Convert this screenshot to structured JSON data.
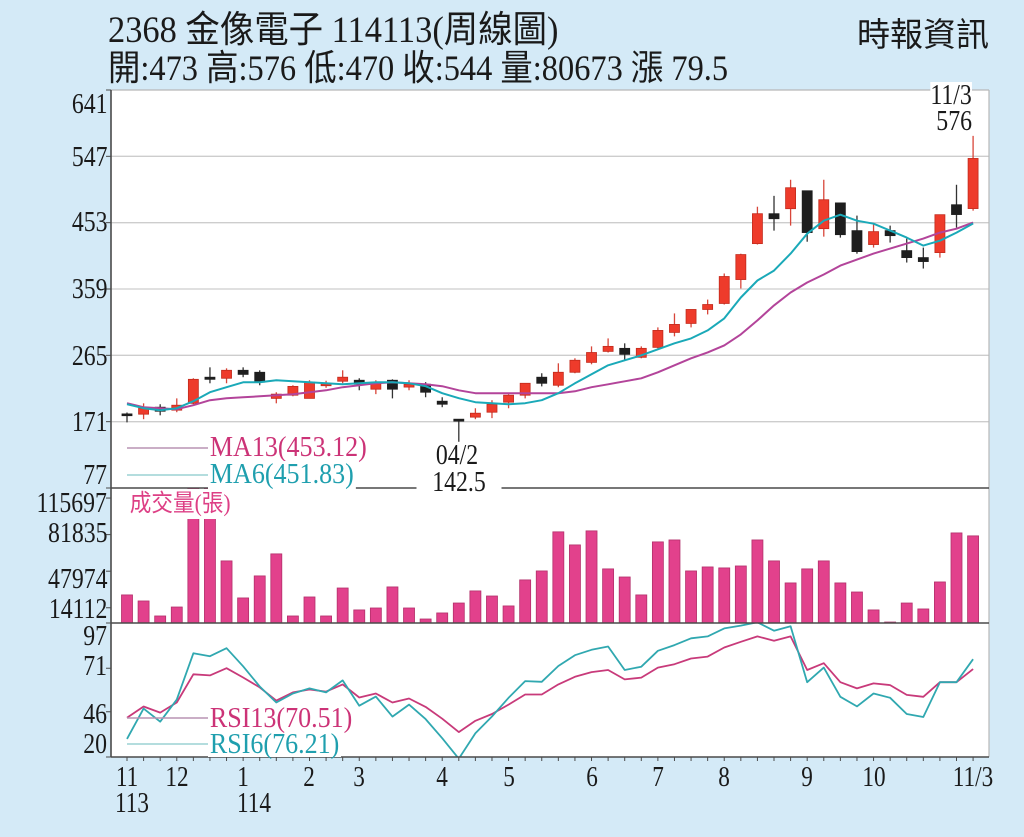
{
  "header": {
    "title": "2368  金像電子 114113(周線圖)",
    "summary": "開:473 高:576 低:470 收:544 量:80673 漲 79.5",
    "source": "時報資訊"
  },
  "quote": {
    "open": 473,
    "high": 576,
    "low": 470,
    "close": 544,
    "volume": 80673,
    "change": 79.5
  },
  "price_panel": {
    "y_axis_labels": [
      "641",
      "547",
      "453",
      "359",
      "265",
      "171",
      "77"
    ],
    "legend": {
      "ma13": "MA13(453.12)",
      "ma6": "MA6(451.83)"
    },
    "annotations": {
      "low_date": "04/2",
      "low_value": "142.5",
      "high_date": "11/3",
      "high_value": "576"
    }
  },
  "volume_panel": {
    "title": "成交量(張)",
    "y_axis_labels": [
      "115697",
      "81835",
      "47974",
      "14112"
    ]
  },
  "rsi_panel": {
    "y_axis_labels": [
      "97",
      "71",
      "46",
      "20"
    ],
    "legend": {
      "rsi13": "RSI13(70.51)",
      "rsi6": "RSI6(76.21)"
    }
  },
  "x_axis": {
    "ticks": [
      {
        "index": 0,
        "label": "11",
        "sub": "113"
      },
      {
        "index": 3,
        "label": "12"
      },
      {
        "index": 7,
        "label": "1",
        "sub": "114"
      },
      {
        "index": 11,
        "label": "2"
      },
      {
        "index": 14,
        "label": "3"
      },
      {
        "index": 19,
        "label": "4"
      },
      {
        "index": 23,
        "label": "5"
      },
      {
        "index": 28,
        "label": "6"
      },
      {
        "index": 32,
        "label": "7"
      },
      {
        "index": 36,
        "label": "8"
      },
      {
        "index": 41,
        "label": "9"
      },
      {
        "index": 45,
        "label": "10"
      },
      {
        "index": 51,
        "label": "11/3"
      }
    ]
  },
  "colors": {
    "background": "#d4eaf7",
    "plot_background": "#ffffff",
    "grid": "#cdcdcd",
    "frame": "#b8b8b8",
    "axis": "#4a4a4a",
    "candle_up": "#ee3b2b",
    "candle_up_border": "#c22a1c",
    "candle_up_wick": "#d8463a",
    "candle_down": "#1e1e1e",
    "candle_down_wick": "#333333",
    "ma13": "#b3449a",
    "ma6": "#1aa9b8",
    "ma13_legend_line": "#b993b3",
    "ma6_legend_line": "#9bd2d4",
    "volume": "#e2418c",
    "volume_border": "#b3306b",
    "rsi13": "#c83a7a",
    "rsi6": "#30a8b0",
    "text": "#1a1a1a",
    "ma13_text": "#cc3377",
    "ma6_text": "#1f9fae",
    "volume_title": "#dd3f85"
  },
  "chart_data": [
    {
      "type": "candlestick",
      "title": "2368  金像電子 114113(周線圖)",
      "xlabel": "",
      "ylabel": "",
      "x_tick_labels": [
        "11",
        "12",
        "1",
        "2",
        "3",
        "4",
        "5",
        "6",
        "7",
        "8",
        "9",
        "10",
        "11/3"
      ],
      "x_tick_positions": [
        0,
        3,
        7,
        11,
        14,
        19,
        23,
        28,
        32,
        36,
        41,
        45,
        51
      ],
      "ylim": [
        77,
        641
      ],
      "yticks": [
        77,
        171,
        265,
        359,
        453,
        547,
        641
      ],
      "grid": true,
      "open": [
        182,
        181.6,
        191.5,
        187.3,
        197,
        234,
        232.5,
        243.8,
        241,
        204,
        208.5,
        204,
        224,
        228.3,
        229.7,
        217,
        229.7,
        220,
        224,
        200,
        174.5,
        177.4,
        184.4,
        198.6,
        208.5,
        234,
        222.6,
        241,
        255,
        270.6,
        274.9,
        262.2,
        276.3,
        297.5,
        310.2,
        330,
        338.5,
        372.4,
        423.3,
        465.7,
        472.8,
        498.2,
        444.5,
        481,
        441.7,
        422,
        441.7,
        413.4,
        403.5,
        410.6,
        478.4,
        473
      ],
      "high": [
        184,
        197,
        195.7,
        204,
        232.5,
        248,
        246.6,
        248,
        243.8,
        212.7,
        222.6,
        229.7,
        229,
        243.8,
        232.5,
        229.7,
        231,
        229.7,
        227,
        205.6,
        174.5,
        190,
        201.4,
        210,
        225.4,
        239.6,
        253.7,
        260.8,
        277.7,
        289,
        282,
        277.7,
        304.6,
        324.4,
        330,
        344,
        381,
        409,
        475.6,
        491,
        513.8,
        498.2,
        513.8,
        481,
        463,
        451.6,
        448.8,
        430.4,
        417.7,
        464.3,
        506.7,
        576
      ],
      "low": [
        170,
        174.5,
        180,
        184.4,
        195.7,
        225.4,
        225.4,
        234,
        222.6,
        197,
        207,
        204,
        219,
        225.4,
        215.5,
        210,
        204,
        215.5,
        205.6,
        191.5,
        142.5,
        174.5,
        176,
        190,
        204,
        221,
        219.8,
        239.6,
        252.3,
        269,
        258,
        260.8,
        274.9,
        291.9,
        304.6,
        323,
        337,
        359.7,
        422,
        441.7,
        448.8,
        426,
        433.2,
        431.8,
        409,
        417.7,
        424.8,
        396.5,
        388,
        403.5,
        446,
        470
      ],
      "close": [
        181,
        190,
        185.8,
        194.3,
        231,
        231,
        243.8,
        238,
        227,
        210,
        221,
        227,
        224.5,
        234,
        224,
        225.4,
        217,
        224,
        212.7,
        195.7,
        171.7,
        183,
        195.7,
        208.5,
        225.4,
        225.4,
        241,
        258,
        269,
        277.7,
        266.4,
        274.9,
        300.3,
        308.8,
        330,
        337,
        376.7,
        407.8,
        465.7,
        458.6,
        502.5,
        439,
        485.5,
        436,
        412,
        440.3,
        434.6,
        403.5,
        397.9,
        464.3,
        464.5,
        544
      ],
      "series": [
        {
          "name": "MA13",
          "color": "#b3449a",
          "last": 453.12,
          "values": [
            197.1,
            191.5,
            190.1,
            188.7,
            194.3,
            201.4,
            204.2,
            205.6,
            207,
            208.5,
            209.9,
            212.7,
            215.5,
            219.8,
            222.6,
            225.4,
            226.8,
            225.4,
            224,
            221.2,
            215.5,
            211.3,
            211.3,
            211.3,
            211.3,
            211.3,
            211.3,
            214.1,
            219.8,
            224,
            228.2,
            232.5,
            241,
            250.9,
            260.8,
            269.2,
            279.1,
            294.7,
            314.5,
            335.7,
            354,
            368.2,
            379.5,
            392.2,
            400.7,
            409.2,
            416.2,
            423.3,
            430.4,
            438.9,
            444.5,
            453.12
          ]
        },
        {
          "name": "MA6",
          "color": "#1aa9b8",
          "last": 451.83,
          "values": [
            195.7,
            190.1,
            187.3,
            190.1,
            200,
            212.7,
            219.8,
            226.8,
            226.8,
            229.7,
            228.2,
            226.8,
            225.4,
            224,
            225.4,
            226.8,
            226.8,
            225.4,
            221.2,
            211.3,
            204.2,
            198.6,
            197.1,
            195.7,
            197.1,
            201.4,
            211.3,
            225.4,
            238.1,
            250.9,
            257.9,
            265,
            273.5,
            282,
            289,
            300.3,
            317.3,
            347,
            371,
            385.1,
            409.2,
            437.4,
            455.8,
            464.3,
            455.8,
            451.6,
            441.7,
            431.8,
            420.5,
            427.5,
            438.9,
            451.83
          ]
        }
      ],
      "annotations": [
        {
          "index": 20,
          "label": "04/2",
          "value": 142.5,
          "kind": "low"
        },
        {
          "index": 51,
          "label": "11/3",
          "value": 576,
          "kind": "high"
        }
      ],
      "legend_position": "bottom-left"
    },
    {
      "type": "bar",
      "title": "成交量(張)",
      "x_tick_positions": [
        0,
        3,
        7,
        11,
        14,
        19,
        23,
        28,
        32,
        36,
        41,
        45,
        51
      ],
      "ylim": [
        0,
        125000
      ],
      "yticks": [
        14112,
        47974,
        81835,
        115697
      ],
      "values": [
        26000,
        20400,
        6500,
        14800,
        135000,
        132000,
        57500,
        23200,
        43600,
        64000,
        6500,
        24100,
        6500,
        32400,
        12100,
        13900,
        33400,
        13900,
        3700,
        9300,
        18500,
        29700,
        25000,
        15800,
        39900,
        48200,
        84400,
        72300,
        85300,
        50100,
        42600,
        26000,
        75100,
        76900,
        48200,
        51900,
        51000,
        52800,
        76900,
        57500,
        37100,
        50100,
        57500,
        37100,
        28700,
        12100,
        900,
        18500,
        13000,
        38000,
        83400,
        80673
      ]
    },
    {
      "type": "line",
      "title": "RSI",
      "x_tick_positions": [
        0,
        3,
        7,
        11,
        14,
        19,
        23,
        28,
        32,
        36,
        41,
        45,
        51
      ],
      "ylim": [
        20,
        97
      ],
      "yticks": [
        20,
        46,
        71,
        97
      ],
      "series": [
        {
          "name": "RSI13",
          "color": "#c83a7a",
          "last": 70.51,
          "values": [
            42.6,
            49,
            45.5,
            51.3,
            67.5,
            66.9,
            71,
            65.7,
            60,
            52.4,
            57.1,
            58.8,
            57.6,
            61.7,
            54.2,
            56.5,
            51.3,
            53.6,
            48.8,
            42,
            34.3,
            40.8,
            44.7,
            50.1,
            55.9,
            55.9,
            61.7,
            66.1,
            68.8,
            70,
            64.6,
            65.6,
            71.4,
            73.3,
            76.6,
            77.7,
            82.9,
            86.2,
            89.3,
            86.8,
            89.3,
            70,
            73.9,
            63,
            59.4,
            62.3,
            61.3,
            55.7,
            54.6,
            63,
            63,
            70.51
          ]
        },
        {
          "name": "RSI6",
          "color": "#30a8b0",
          "last": 76.21,
          "values": [
            30.4,
            47.8,
            40.3,
            53,
            79.6,
            77.9,
            82.5,
            72.1,
            60.5,
            51.3,
            56.5,
            59.4,
            57.1,
            64,
            49.5,
            54.7,
            43.2,
            50.1,
            41.8,
            30.8,
            19,
            33.7,
            43.3,
            54,
            63.6,
            63.2,
            72.3,
            78.5,
            81.6,
            83.5,
            70,
            71.9,
            81,
            84.3,
            88.2,
            89.3,
            93.9,
            95.5,
            97.4,
            92.6,
            95.1,
            63,
            71.4,
            54.6,
            49.1,
            56.5,
            54,
            44.7,
            43,
            63,
            63,
            76.21
          ]
        }
      ]
    }
  ]
}
